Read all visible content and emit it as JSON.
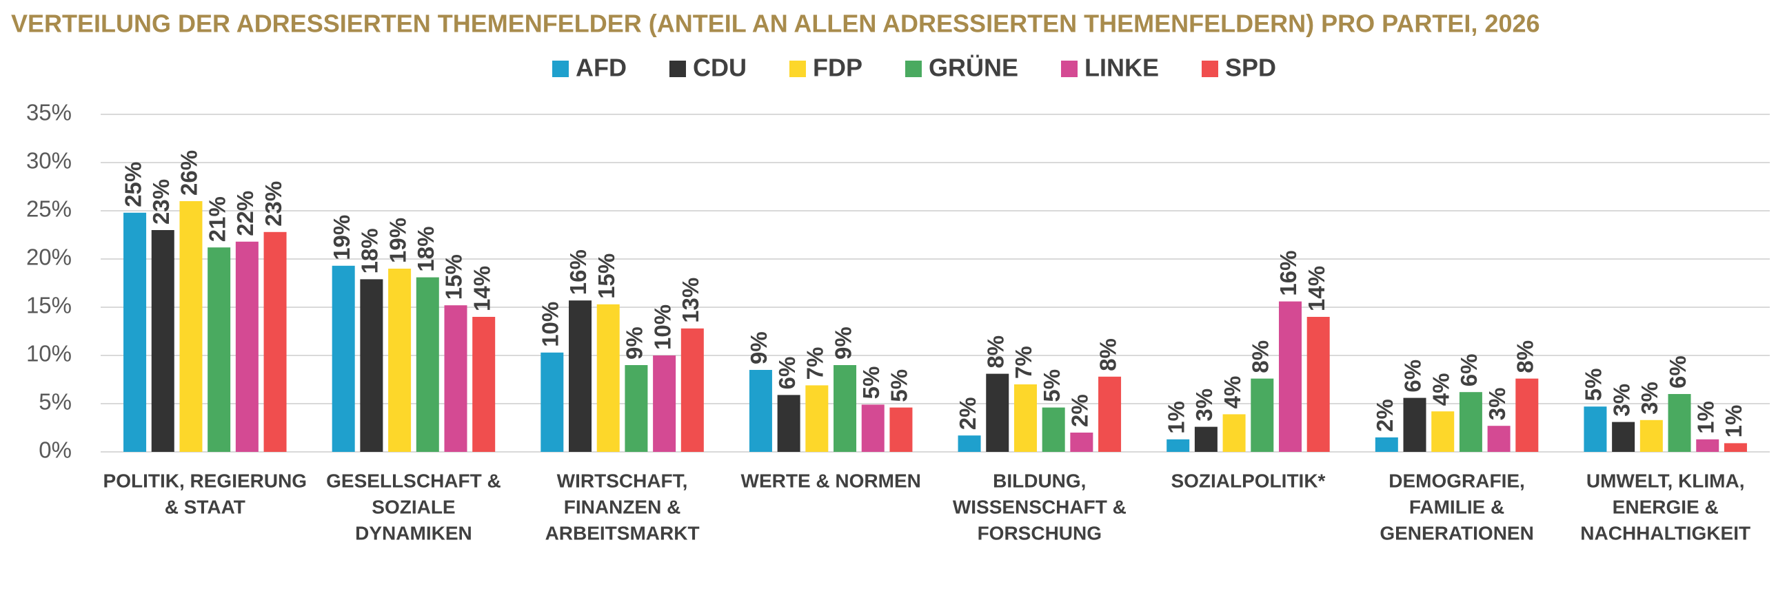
{
  "chart_data": {
    "type": "bar",
    "title": "VERTEILUNG DER ADRESSIERTEN THEMENFELDER (ANTEIL AN ALLEN ADRESSIERTEN THEMENFELDERN) PRO PARTEI, 2026",
    "categories": [
      [
        "POLITIK, REGIERUNG",
        "& STAAT"
      ],
      [
        "GESELLSCHAFT &",
        "SOZIALE",
        "DYNAMIKEN"
      ],
      [
        "WIRTSCHAFT,",
        "FINANZEN &",
        "ARBEITSMARKT"
      ],
      [
        "WERTE & NORMEN"
      ],
      [
        "BILDUNG,",
        "WISSENSCHAFT &",
        "FORSCHUNG"
      ],
      [
        "SOZIALPOLITIK*"
      ],
      [
        "DEMOGRAFIE,",
        "FAMILIE &",
        "GENERATIONEN"
      ],
      [
        "UMWELT, KLIMA,",
        "ENERGIE &",
        "NACHHALTIGKEIT"
      ]
    ],
    "series": [
      {
        "name": "AFD",
        "color": "#1fa0cd",
        "values": [
          24.8,
          19.3,
          10.3,
          8.5,
          1.7,
          1.3,
          1.5,
          4.7
        ],
        "value_labels": [
          "25%",
          "19%",
          "10%",
          "9%",
          "2%",
          "1%",
          "2%",
          "5%"
        ]
      },
      {
        "name": "CDU",
        "color": "#333333",
        "values": [
          23.0,
          17.9,
          15.7,
          5.9,
          8.1,
          2.6,
          5.6,
          3.1
        ],
        "value_labels": [
          "23%",
          "18%",
          "16%",
          "6%",
          "8%",
          "3%",
          "6%",
          "3%"
        ]
      },
      {
        "name": "FDP",
        "color": "#fdd72a",
        "values": [
          26.0,
          19.0,
          15.3,
          6.9,
          7.0,
          3.9,
          4.2,
          3.3
        ],
        "value_labels": [
          "26%",
          "19%",
          "15%",
          "7%",
          "7%",
          "4%",
          "4%",
          "3%"
        ]
      },
      {
        "name": "GRÜNE",
        "color": "#4aaa60",
        "values": [
          21.2,
          18.1,
          9.0,
          9.0,
          4.6,
          7.6,
          6.2,
          6.0
        ],
        "value_labels": [
          "21%",
          "18%",
          "9%",
          "9%",
          "5%",
          "8%",
          "6%",
          "6%"
        ]
      },
      {
        "name": "LINKE",
        "color": "#d44a93",
        "values": [
          21.8,
          15.2,
          10.0,
          4.9,
          2.0,
          15.6,
          2.7,
          1.3
        ],
        "value_labels": [
          "22%",
          "15%",
          "10%",
          "5%",
          "2%",
          "16%",
          "3%",
          "1%"
        ]
      },
      {
        "name": "SPD",
        "color": "#f04e4e",
        "values": [
          22.8,
          14.0,
          12.8,
          4.6,
          7.8,
          14.0,
          7.6,
          0.9
        ],
        "value_labels": [
          "23%",
          "14%",
          "13%",
          "5%",
          "8%",
          "14%",
          "8%",
          "1%"
        ]
      }
    ],
    "ylim": [
      0,
      35
    ],
    "yticks": [
      {
        "value": 0,
        "label": "0%"
      },
      {
        "value": 5,
        "label": "5%"
      },
      {
        "value": 10,
        "label": "10%"
      },
      {
        "value": 15,
        "label": "15%"
      },
      {
        "value": 20,
        "label": "20%"
      },
      {
        "value": 25,
        "label": "25%"
      },
      {
        "value": 30,
        "label": "30%"
      },
      {
        "value": 35,
        "label": "35%"
      }
    ],
    "grid": true
  }
}
